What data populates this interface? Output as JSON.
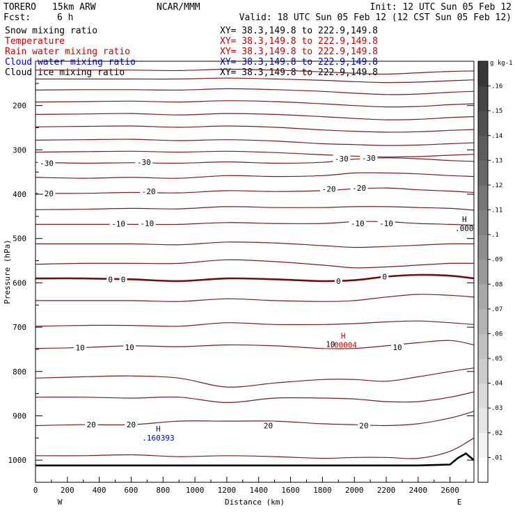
{
  "header": {
    "model": "TORERO",
    "resolution": "15km ARW",
    "org": "NCAR/MMM",
    "init": "Init: 12 UTC Sun 05 Feb 12",
    "fcst_label": "Fcst:",
    "fcst_value": "6 h",
    "valid": "Valid: 18 UTC Sun 05 Feb 12 (12 CST Sun 05 Feb 12)"
  },
  "legend": [
    {
      "name": "Snow mixing ratio",
      "xy": "XY=  38.3,149.8 to 222.9,149.8",
      "color": "#000000"
    },
    {
      "name": "Temperature",
      "xy": "XY=  38.3,149.8 to 222.9,149.8",
      "color": "#cc0000"
    },
    {
      "name": "Rain water mixing ratio",
      "xy": "XY=  38.3,149.8 to 222.9,149.8",
      "color": "#cc0000"
    },
    {
      "name": "Cloud water mixing ratio",
      "xy": "XY=  38.3,149.8 to 222.9,149.8",
      "color": "#0000cc"
    },
    {
      "name": "Cloud ice mixing ratio",
      "xy": "XY=  38.3,149.8 to 222.9,149.8",
      "color": "#000000"
    }
  ],
  "chart_data": {
    "type": "cross-section contour",
    "xlabel": "Distance (km)",
    "ylabel": "Pressure (hPa)",
    "xlim": [
      0,
      2750
    ],
    "ylim": [
      1050,
      100
    ],
    "x_ticks": [
      0,
      200,
      400,
      600,
      800,
      1000,
      1200,
      1400,
      1600,
      1800,
      2000,
      2200,
      2400,
      2600
    ],
    "y_ticks": [
      200,
      300,
      400,
      500,
      600,
      700,
      800,
      900,
      1000
    ],
    "x_tick_labels": [
      "0",
      "200",
      "400",
      "600",
      "800",
      "1000",
      "1200",
      "1400",
      "1600",
      "1800",
      "2000",
      "2200",
      "2400",
      "2600"
    ],
    "y_tick_labels": [
      "200",
      "300",
      "400",
      "500",
      "600",
      "700",
      "800",
      "900",
      "1000"
    ],
    "west_label": "W",
    "east_label": "E",
    "colorbar": {
      "unit": "g kg-1",
      "ticks": [
        ".01",
        ".02",
        ".03",
        ".04",
        ".05",
        ".06",
        ".07",
        ".08",
        ".09",
        ".1",
        ".11",
        ".12",
        ".13",
        ".14",
        ".15",
        ".16"
      ],
      "values": [
        0.01,
        0.02,
        0.03,
        0.04,
        0.05,
        0.06,
        0.07,
        0.08,
        0.09,
        0.1,
        0.11,
        0.12,
        0.13,
        0.14,
        0.15,
        0.16
      ],
      "max": 0.17
    },
    "temperature_levels": [
      {
        "x": [
          0,
          300,
          600,
          900,
          1200,
          1500,
          1800,
          2000,
          2200,
          2400,
          2600,
          2750
        ],
        "p": [
          120,
          120,
          120,
          121,
          118,
          120,
          124,
          127,
          129,
          126,
          123,
          122
        ]
      },
      {
        "x": [
          0,
          300,
          600,
          900,
          1200,
          1500,
          1800,
          2000,
          2200,
          2400,
          2600,
          2750
        ],
        "p": [
          140,
          140,
          140,
          140,
          138,
          140,
          143,
          146,
          148,
          147,
          144,
          142
        ]
      },
      {
        "x": [
          0,
          300,
          600,
          900,
          1200,
          1500,
          1800,
          2000,
          2200,
          2400,
          2600,
          2750
        ],
        "p": [
          165,
          164,
          164,
          165,
          162,
          164,
          168,
          172,
          175,
          174,
          170,
          168
        ]
      },
      {
        "x": [
          0,
          300,
          600,
          900,
          1200,
          1500,
          1800,
          2000,
          2200,
          2400,
          2600,
          2750
        ],
        "p": [
          192,
          191,
          190,
          192,
          189,
          191,
          196,
          200,
          203,
          202,
          198,
          196
        ]
      },
      {
        "x": [
          0,
          300,
          600,
          900,
          1200,
          1500,
          1800,
          2000,
          2200,
          2400,
          2600,
          2750
        ],
        "p": [
          220,
          219,
          218,
          221,
          218,
          220,
          225,
          229,
          232,
          231,
          227,
          225
        ]
      },
      {
        "x": [
          0,
          300,
          600,
          900,
          1200,
          1500,
          1800,
          2000,
          2200,
          2400,
          2600,
          2750
        ],
        "p": [
          248,
          247,
          246,
          249,
          246,
          249,
          255,
          258,
          260,
          259,
          256,
          254
        ]
      },
      {
        "x": [
          0,
          300,
          600,
          900,
          1200,
          1500,
          1800,
          2000,
          2200,
          2400,
          2600,
          2750
        ],
        "p": [
          278,
          277,
          276,
          279,
          277,
          280,
          286,
          288,
          290,
          289,
          286,
          284
        ]
      },
      {
        "x": [
          0,
          300,
          600,
          900,
          1200,
          1500,
          1800,
          2000,
          2200,
          2400,
          2600,
          2750
        ],
        "p": [
          305,
          304,
          303,
          305,
          303,
          306,
          311,
          314,
          316,
          315,
          312,
          310
        ]
      },
      {
        "x": [
          0,
          300,
          600,
          900,
          1200,
          1500,
          1800,
          2000,
          2200,
          2400,
          2600,
          2750
        ],
        "p": [
          328,
          330,
          329,
          330,
          327,
          330,
          328,
          321,
          318,
          320,
          324,
          326
        ]
      },
      {
        "x": [
          0,
          300,
          600,
          900,
          1200,
          1500,
          1800,
          2000,
          2200,
          2400,
          2600,
          2750
        ],
        "p": [
          362,
          364,
          362,
          364,
          358,
          360,
          358,
          352,
          352,
          354,
          358,
          360
        ]
      },
      {
        "x": [
          0,
          300,
          600,
          900,
          1200,
          1500,
          1800,
          2000,
          2200,
          2400,
          2600,
          2750
        ],
        "p": [
          398,
          398,
          396,
          397,
          392,
          394,
          392,
          388,
          386,
          390,
          393,
          396
        ]
      },
      {
        "x": [
          0,
          300,
          600,
          900,
          1200,
          1500,
          1800,
          2000,
          2200,
          2400,
          2600,
          2750
        ],
        "p": [
          435,
          434,
          432,
          433,
          428,
          430,
          430,
          428,
          428,
          430,
          432,
          436
        ]
      },
      {
        "x": [
          0,
          300,
          600,
          900,
          1200,
          1500,
          1800,
          2000,
          2200,
          2400,
          2600,
          2750
        ],
        "p": [
          468,
          468,
          468,
          468,
          464,
          466,
          466,
          462,
          462,
          466,
          468,
          470
        ]
      },
      {
        "x": [
          0,
          300,
          600,
          900,
          1200,
          1500,
          1800,
          2000,
          2200,
          2400,
          2600,
          2750
        ],
        "p": [
          512,
          512,
          512,
          514,
          508,
          510,
          516,
          520,
          518,
          515,
          512,
          512
        ]
      },
      {
        "x": [
          0,
          300,
          600,
          900,
          1200,
          1500,
          1800,
          2000,
          2200,
          2400,
          2600,
          2750
        ],
        "p": [
          558,
          556,
          556,
          556,
          548,
          552,
          560,
          566,
          564,
          560,
          556,
          556
        ]
      },
      {
        "x": [
          0,
          300,
          600,
          900,
          1200,
          1500,
          1800,
          2000,
          2200,
          2400,
          2600,
          2750
        ],
        "p": [
          590,
          590,
          592,
          596,
          590,
          592,
          596,
          594,
          586,
          582,
          584,
          590
        ]
      },
      {
        "x": [
          0,
          300,
          600,
          900,
          1200,
          1500,
          1800,
          2000,
          2200,
          2400,
          2600,
          2750
        ],
        "p": [
          640,
          640,
          640,
          642,
          636,
          640,
          642,
          640,
          632,
          626,
          628,
          632
        ]
      },
      {
        "x": [
          0,
          300,
          600,
          900,
          1200,
          1500,
          1800,
          2000,
          2200,
          2400,
          2600,
          2750
        ],
        "p": [
          698,
          696,
          696,
          698,
          690,
          694,
          694,
          692,
          688,
          686,
          690,
          694
        ]
      },
      {
        "x": [
          0,
          300,
          600,
          900,
          1200,
          1500,
          1800,
          2000,
          2200,
          2400,
          2600,
          2750
        ],
        "p": [
          748,
          746,
          742,
          744,
          740,
          742,
          748,
          748,
          742,
          735,
          730,
          740
        ]
      },
      {
        "x": [
          0,
          300,
          600,
          900,
          1200,
          1500,
          1800,
          2000,
          2200,
          2400,
          2600,
          2750
        ],
        "p": [
          815,
          812,
          810,
          815,
          835,
          826,
          818,
          818,
          822,
          812,
          800,
          792
        ]
      },
      {
        "x": [
          0,
          300,
          600,
          900,
          1200,
          1500,
          1800,
          2000,
          2200,
          2400,
          2600,
          2750
        ],
        "p": [
          858,
          858,
          860,
          858,
          870,
          860,
          860,
          862,
          868,
          868,
          858,
          846
        ]
      },
      {
        "x": [
          0,
          300,
          600,
          900,
          1200,
          1500,
          1800,
          2000,
          2200,
          2400,
          2600,
          2750
        ],
        "p": [
          922,
          920,
          920,
          912,
          912,
          912,
          918,
          920,
          922,
          918,
          905,
          890
        ]
      },
      {
        "x": [
          0,
          300,
          600,
          900,
          1200,
          1500,
          1800,
          2000,
          2200,
          2400,
          2600,
          2750
        ],
        "p": [
          990,
          990,
          988,
          992,
          990,
          992,
          996,
          994,
          994,
          996,
          980,
          950
        ]
      }
    ],
    "freezing_level": {
      "x": [
        0,
        300,
        600,
        900,
        1200,
        1500,
        1800,
        2000,
        2200,
        2400,
        2600,
        2750
      ],
      "p": [
        590,
        590,
        592,
        596,
        590,
        592,
        596,
        594,
        586,
        582,
        584,
        590
      ]
    },
    "temperature_labels": [
      {
        "text": "-30",
        "x": 70,
        "p": 330
      },
      {
        "text": "-30",
        "x": 680,
        "p": 328
      },
      {
        "text": "-30",
        "x": 1920,
        "p": 320
      },
      {
        "text": "-30",
        "x": 2090,
        "p": 318
      },
      {
        "text": "-20",
        "x": 70,
        "p": 398
      },
      {
        "text": "-20",
        "x": 710,
        "p": 394
      },
      {
        "text": "-20",
        "x": 1840,
        "p": 388
      },
      {
        "text": "-20",
        "x": 2030,
        "p": 386
      },
      {
        "text": "-10",
        "x": 520,
        "p": 467
      },
      {
        "text": "-10",
        "x": 700,
        "p": 466
      },
      {
        "text": "-10",
        "x": 2020,
        "p": 466
      },
      {
        "text": "-10",
        "x": 2200,
        "p": 466
      },
      {
        "text": "0",
        "x": 470,
        "p": 592
      },
      {
        "text": "0",
        "x": 550,
        "p": 592
      },
      {
        "text": "0",
        "x": 1900,
        "p": 596
      },
      {
        "text": "0",
        "x": 2190,
        "p": 586
      },
      {
        "text": "10",
        "x": 280,
        "p": 746
      },
      {
        "text": "10",
        "x": 590,
        "p": 745
      },
      {
        "text": "10",
        "x": 1850,
        "p": 738
      },
      {
        "text": "10",
        "x": 2270,
        "p": 745
      },
      {
        "text": "20",
        "x": 350,
        "p": 920
      },
      {
        "text": "20",
        "x": 600,
        "p": 920
      },
      {
        "text": "20",
        "x": 1460,
        "p": 922
      },
      {
        "text": "20",
        "x": 2060,
        "p": 922
      }
    ],
    "extrema": [
      {
        "kind": "H",
        "value": ".000",
        "x": 2690,
        "p": 472,
        "color": "#000000"
      },
      {
        "kind": "H",
        "value": ".00004",
        "x": 1930,
        "p": 735,
        "color": "#cc0000"
      },
      {
        "kind": "H",
        "value": ".160393",
        "x": 770,
        "p": 945,
        "color": "#0000cc"
      }
    ],
    "terrain": {
      "x": [
        0,
        400,
        800,
        1200,
        1600,
        2000,
        2400,
        2600,
        2650,
        2700,
        2750
      ],
      "p": [
        1012,
        1012,
        1012,
        1012,
        1012,
        1012,
        1012,
        1010,
        995,
        985,
        1000
      ]
    }
  }
}
